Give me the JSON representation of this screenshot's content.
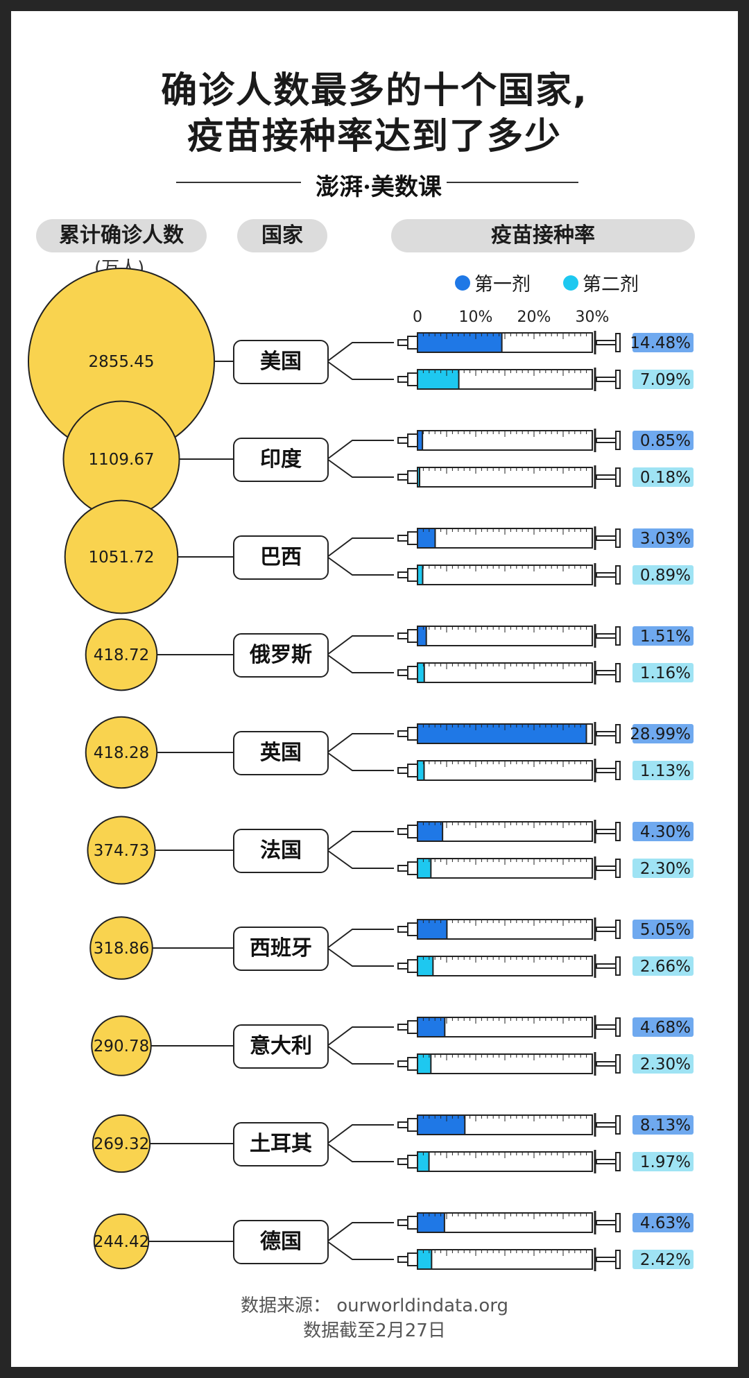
{
  "title_line1": "确诊人数最多的十个国家,",
  "title_line2": "疫苗接种率达到了多少",
  "brand": "澎湃·美数课",
  "headers": {
    "cases": "累计确诊人数",
    "country": "国家",
    "vaccine": "疫苗接种率"
  },
  "unit": "(万人)",
  "legend": {
    "dose1": "第一剂",
    "dose2": "第二剂"
  },
  "colors": {
    "case_bubble": "#f9d34f",
    "dose1": "#1f78e6",
    "dose1_label_bg": "#6fa9ef",
    "dose2": "#1ec8f0",
    "dose2_label_bg": "#9fe3f4"
  },
  "footer": {
    "source": "数据来源：  ourworldindata.org",
    "date": "数据截至2月27日"
  },
  "chart_data": {
    "type": "bar",
    "categories": [
      "美国",
      "印度",
      "巴西",
      "俄罗斯",
      "英国",
      "法国",
      "西班牙",
      "意大利",
      "土耳其",
      "德国"
    ],
    "cases_unit": "万人",
    "cases": [
      2855.45,
      1109.67,
      1051.72,
      418.72,
      418.28,
      374.73,
      318.86,
      290.78,
      269.32,
      244.42
    ],
    "case_labels": [
      "2855.45",
      "1109.67",
      "1051.72",
      "418.72",
      "418.28",
      "374.73",
      "318.86",
      "290.78",
      "269.32",
      "244.42"
    ],
    "series": [
      {
        "name": "第一剂",
        "values": [
          14.48,
          0.85,
          3.03,
          1.51,
          28.99,
          4.3,
          5.05,
          4.68,
          8.13,
          4.63
        ],
        "labels": [
          "14.48%",
          "0.85%",
          "3.03%",
          "1.51%",
          "28.99%",
          "4.30%",
          "5.05%",
          "4.68%",
          "8.13%",
          "4.63%"
        ]
      },
      {
        "name": "第二剂",
        "values": [
          7.09,
          0.18,
          0.89,
          1.16,
          1.13,
          2.3,
          2.66,
          2.3,
          1.97,
          2.42
        ],
        "labels": [
          "7.09%",
          "0.18%",
          "0.89%",
          "1.16%",
          "1.13%",
          "2.30%",
          "2.66%",
          "2.30%",
          "1.97%",
          "2.42%"
        ]
      }
    ],
    "xaxis_ticks": [
      "0",
      "10%",
      "20%",
      "30%"
    ],
    "xlim": [
      0,
      30
    ]
  }
}
